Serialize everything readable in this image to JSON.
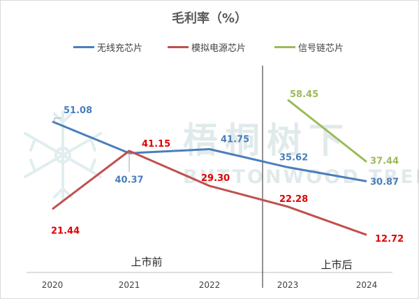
{
  "chart_data": {
    "type": "line",
    "title": "毛利率（%）",
    "categories": [
      "2020",
      "2021",
      "2022",
      "2023",
      "2024"
    ],
    "ylim": [
      0,
      70
    ],
    "grid": false,
    "legend_position": "top",
    "series": [
      {
        "name": "无线充芯片",
        "color": "#4a7ebb",
        "label_color": "#4a7ebb",
        "values": [
          51.08,
          40.37,
          41.75,
          35.62,
          30.87
        ],
        "labels": [
          "51.08",
          "40.37",
          "41.75",
          "35.62",
          "30.87"
        ]
      },
      {
        "name": "模拟电源芯片",
        "color": "#c0504d",
        "label_color": "#e00000",
        "values": [
          21.44,
          41.15,
          29.3,
          22.28,
          12.72
        ],
        "labels": [
          "21.44",
          "41.15",
          "29.30",
          "22.28",
          "12.72"
        ]
      },
      {
        "name": "信号链芯片",
        "color": "#9bbb59",
        "label_color": "#9bbb59",
        "values": [
          null,
          null,
          null,
          58.45,
          37.44
        ],
        "labels": [
          null,
          null,
          null,
          "58.45",
          "37.44"
        ]
      }
    ],
    "annotations": {
      "before_listing": "上市前",
      "after_listing": "上市后"
    },
    "watermark": {
      "cn": "梧桐树下",
      "en": "BUTTONWOOD TREE"
    }
  }
}
